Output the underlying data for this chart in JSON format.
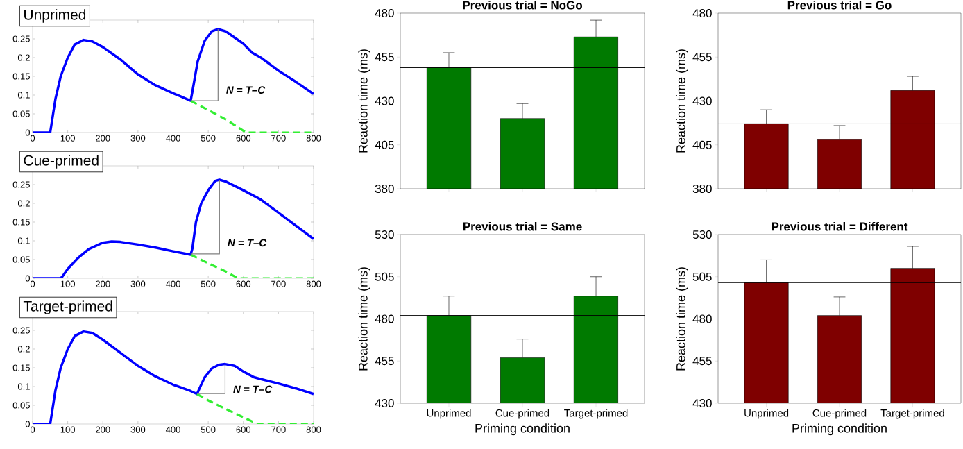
{
  "chart_data": [
    {
      "type": "line",
      "title": "Unprimed",
      "xlim": [
        0,
        800
      ],
      "ylim": [
        0,
        0.3
      ],
      "xticks": [
        0,
        100,
        200,
        300,
        400,
        500,
        600,
        700,
        800
      ],
      "yticks": [
        0,
        0.05,
        0.1,
        0.15,
        0.2,
        0.25
      ],
      "annotations": [
        "N = T–C"
      ],
      "series": [
        {
          "color": "#0000ff",
          "x": [
            0,
            45,
            50,
            55,
            65,
            80,
            100,
            120,
            145,
            170,
            200,
            250,
            300,
            350,
            400,
            450,
            455,
            470,
            490,
            510,
            528,
            550,
            600,
            625,
            650,
            700,
            750,
            800
          ],
          "values": [
            0,
            0,
            0,
            0.03,
            0.09,
            0.15,
            0.2,
            0.235,
            0.247,
            0.243,
            0.228,
            0.195,
            0.155,
            0.126,
            0.105,
            0.085,
            0.11,
            0.19,
            0.245,
            0.27,
            0.276,
            0.27,
            0.237,
            0.213,
            0.2,
            0.165,
            0.135,
            0.103
          ]
        },
        {
          "color": "#33ee33",
          "line_style": "dashed",
          "x": [
            450,
            500,
            550,
            600,
            608,
            800
          ],
          "values": [
            0.085,
            0.06,
            0.035,
            0.005,
            0,
            0
          ]
        },
        {
          "color": "#808080",
          "x": [
            450,
            528,
            528
          ],
          "values": [
            0.085,
            0.085,
            0.276
          ]
        }
      ]
    },
    {
      "type": "line",
      "title": "Cue-primed",
      "xlim": [
        0,
        800
      ],
      "ylim": [
        0,
        0.3
      ],
      "xticks": [
        0,
        100,
        200,
        300,
        400,
        500,
        600,
        700,
        800
      ],
      "yticks": [
        0,
        0.05,
        0.1,
        0.15,
        0.2,
        0.25
      ],
      "annotations": [
        "N = T–C"
      ],
      "series": [
        {
          "color": "#0000ff",
          "x": [
            0,
            80,
            85,
            100,
            130,
            160,
            200,
            225,
            250,
            300,
            350,
            400,
            450,
            455,
            465,
            480,
            500,
            520,
            532,
            550,
            600,
            650,
            700,
            750,
            800
          ],
          "values": [
            0,
            0,
            0.005,
            0.025,
            0.055,
            0.078,
            0.095,
            0.098,
            0.097,
            0.09,
            0.082,
            0.072,
            0.063,
            0.08,
            0.15,
            0.2,
            0.235,
            0.26,
            0.263,
            0.258,
            0.235,
            0.21,
            0.175,
            0.14,
            0.105
          ]
        },
        {
          "color": "#33ee33",
          "line_style": "dashed",
          "x": [
            450,
            500,
            550,
            585,
            800
          ],
          "values": [
            0.063,
            0.04,
            0.018,
            0,
            0
          ]
        },
        {
          "color": "#808080",
          "x": [
            450,
            532,
            532
          ],
          "values": [
            0.065,
            0.065,
            0.263
          ]
        }
      ]
    },
    {
      "type": "line",
      "title": "Target-primed",
      "xlim": [
        0,
        800
      ],
      "ylim": [
        0,
        0.3
      ],
      "xticks": [
        0,
        100,
        200,
        300,
        400,
        500,
        600,
        700,
        800
      ],
      "yticks": [
        0,
        0.05,
        0.1,
        0.15,
        0.2,
        0.25
      ],
      "annotations": [
        "N = T–C"
      ],
      "series": [
        {
          "color": "#0000ff",
          "x": [
            0,
            45,
            50,
            55,
            65,
            80,
            100,
            120,
            145,
            170,
            200,
            250,
            300,
            350,
            400,
            450,
            468,
            475,
            490,
            510,
            530,
            548,
            575,
            600,
            630,
            650,
            700,
            750,
            800
          ],
          "values": [
            0,
            0,
            0,
            0.03,
            0.09,
            0.15,
            0.2,
            0.235,
            0.247,
            0.243,
            0.225,
            0.19,
            0.155,
            0.127,
            0.105,
            0.088,
            0.08,
            0.095,
            0.125,
            0.148,
            0.158,
            0.16,
            0.155,
            0.14,
            0.125,
            0.12,
            0.108,
            0.095,
            0.08
          ]
        },
        {
          "color": "#33ee33",
          "line_style": "dashed",
          "x": [
            468,
            500,
            550,
            600,
            640,
            800
          ],
          "values": [
            0.08,
            0.063,
            0.04,
            0.018,
            0,
            0
          ]
        },
        {
          "color": "#808080",
          "x": [
            468,
            548,
            548
          ],
          "values": [
            0.081,
            0.081,
            0.16
          ]
        }
      ]
    },
    {
      "type": "bar",
      "title": "Previous trial = NoGo",
      "ylabel": "Reaction time (ms)",
      "categories": [
        null,
        null,
        null
      ],
      "values": [
        449,
        420,
        466.5
      ],
      "errors": [
        [
          449,
          457.5
        ],
        [
          420,
          428.5
        ],
        [
          466.5,
          476
        ]
      ],
      "color": "#007a00",
      "ylim": [
        380,
        480
      ],
      "yticks": [
        380,
        405,
        430,
        455,
        480
      ],
      "ref_lines": [
        {
          "axis": "y",
          "value": 449
        }
      ],
      "tick_labels": "y"
    },
    {
      "type": "bar",
      "title": "Previous trial = Go",
      "ylabel": "Reaction time (ms)",
      "categories": [
        null,
        null,
        null
      ],
      "values": [
        417,
        408,
        436
      ],
      "errors": [
        [
          417,
          425
        ],
        [
          408,
          416
        ],
        [
          436,
          444
        ]
      ],
      "color": "#7f0000",
      "ylim": [
        380,
        480
      ],
      "yticks": [
        380,
        405,
        430,
        455,
        480
      ],
      "ref_lines": [
        {
          "axis": "y",
          "value": 417
        }
      ],
      "tick_labels": "y"
    },
    {
      "type": "bar",
      "title": "Previous trial = Same",
      "ylabel": "Reaction time (ms)",
      "xlabel": "Priming condition",
      "categories": [
        "Unprimed",
        "Cue-primed",
        "Target-primed"
      ],
      "values": [
        482,
        457,
        493.5
      ],
      "errors": [
        [
          482,
          493.5
        ],
        [
          457,
          468
        ],
        [
          493.5,
          505
        ]
      ],
      "color": "#007a00",
      "ylim": [
        430,
        530
      ],
      "yticks": [
        430,
        455,
        480,
        505,
        530
      ],
      "ref_lines": [
        {
          "axis": "y",
          "value": 482
        }
      ]
    },
    {
      "type": "bar",
      "title": "Previous trial = Different",
      "ylabel": "Reaction time (ms)",
      "xlabel": "Priming condition",
      "categories": [
        "Unprimed",
        "Cue-primed",
        "Target-primed"
      ],
      "values": [
        501.5,
        482,
        510
      ],
      "errors": [
        [
          501.5,
          515
        ],
        [
          482,
          493
        ],
        [
          510,
          523
        ]
      ],
      "color": "#7f0000",
      "ylim": [
        430,
        530
      ],
      "yticks": [
        430,
        455,
        480,
        505,
        530
      ],
      "ref_lines": [
        {
          "axis": "y",
          "value": 501.5
        }
      ]
    }
  ]
}
